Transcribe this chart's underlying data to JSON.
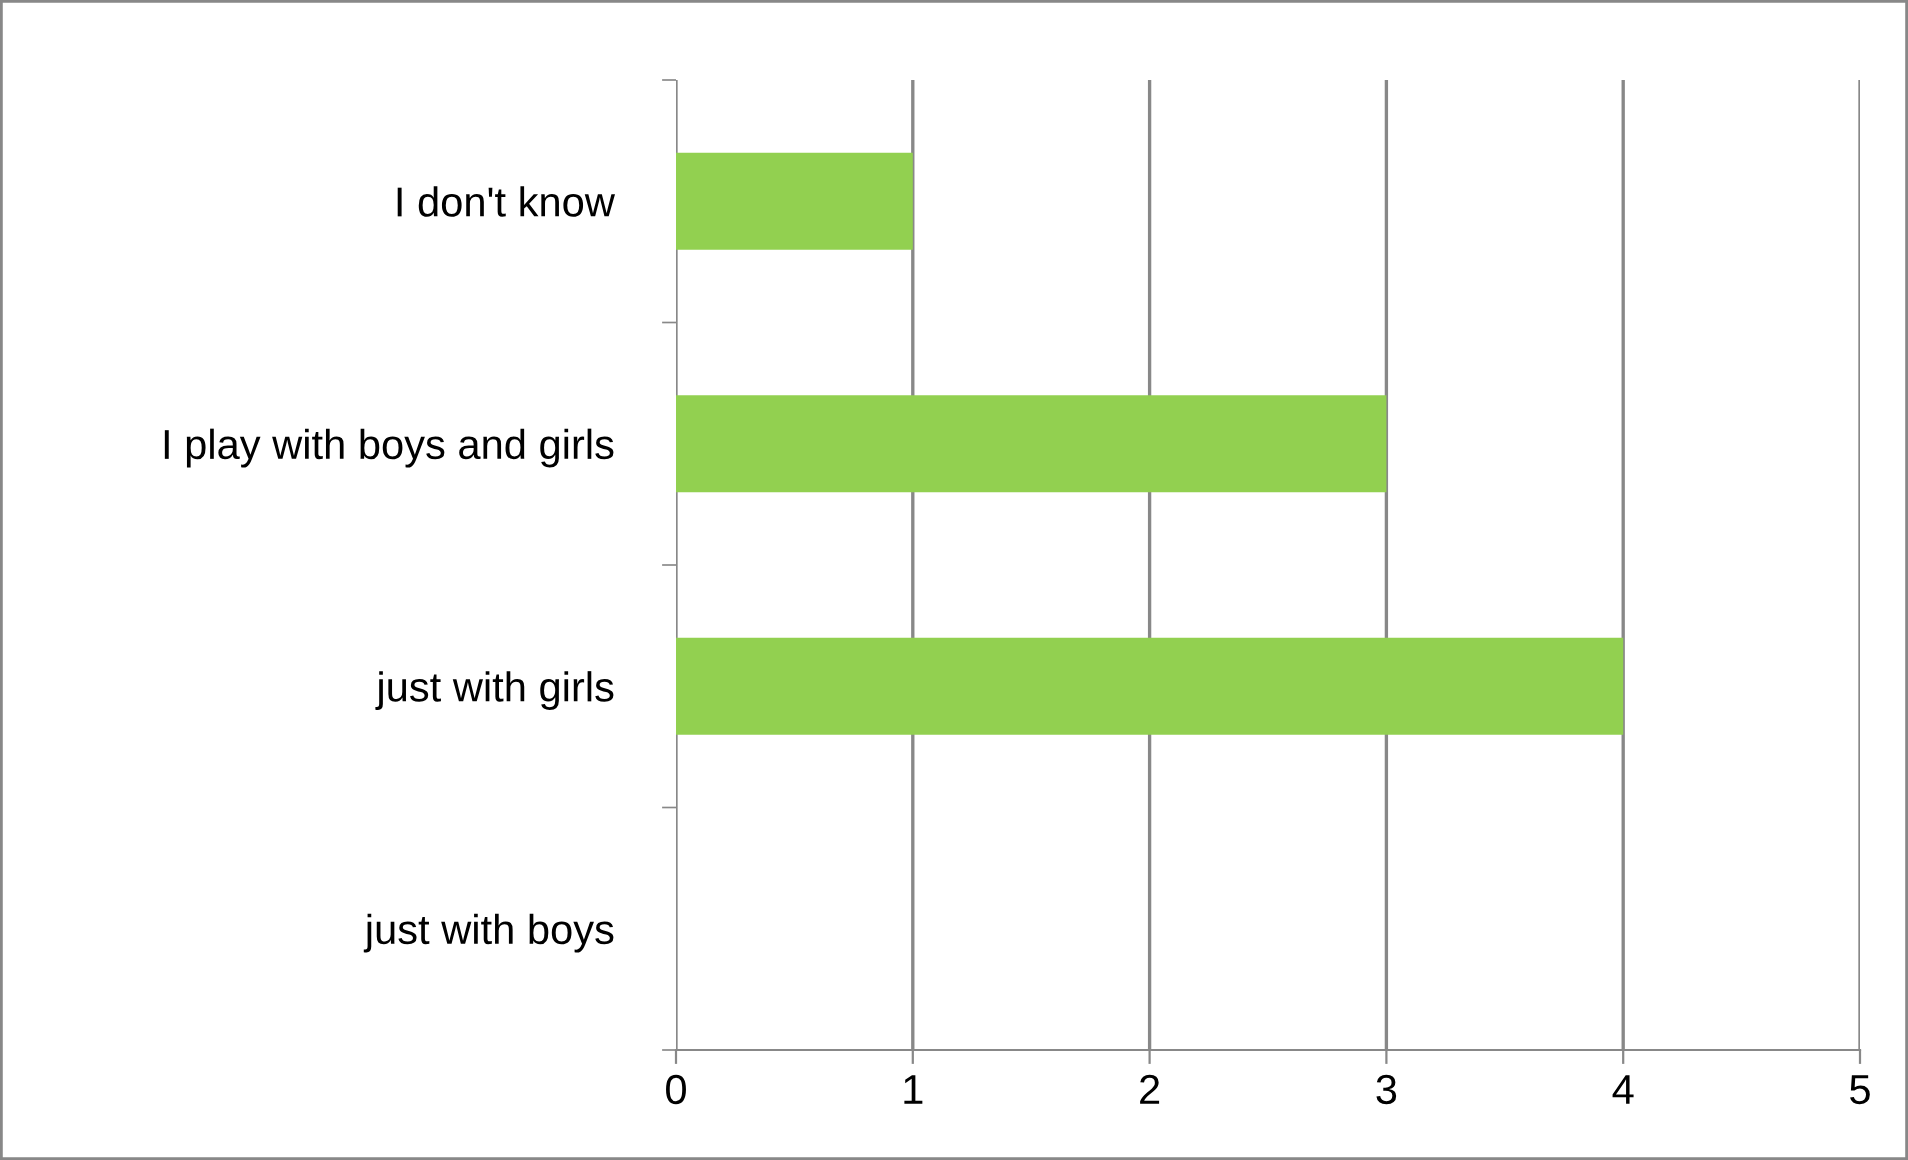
{
  "chart_data": {
    "type": "bar",
    "orientation": "horizontal",
    "categories": [
      "I don't know",
      "I play with boys and girls",
      "just with girls",
      "just with boys"
    ],
    "values": [
      1,
      3,
      4,
      0
    ],
    "color": "#92d050",
    "xlim": [
      0,
      5
    ],
    "xticks": [
      0,
      1,
      2,
      3,
      4,
      5
    ],
    "grid": "x",
    "legend": false
  }
}
